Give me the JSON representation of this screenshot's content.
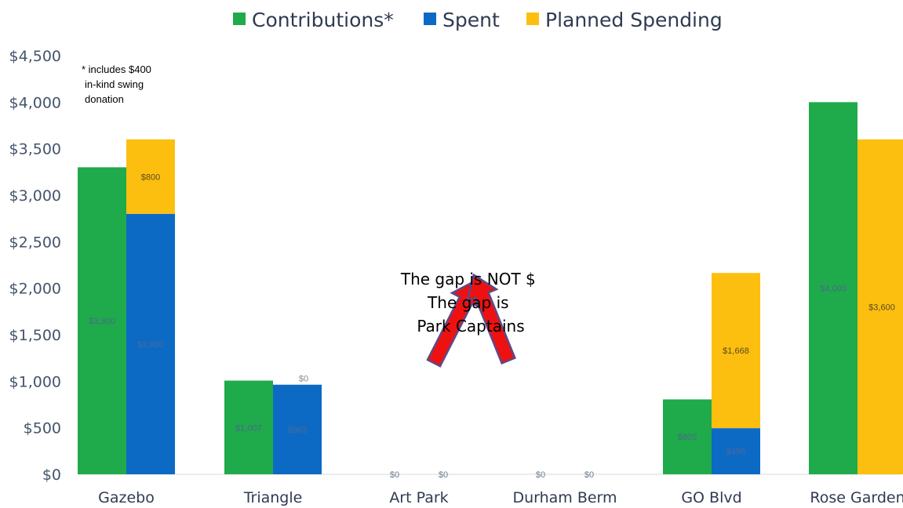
{
  "colors": {
    "contributions": "#1faa4b",
    "spent": "#0c6ac5",
    "planned": "#fdbf0f",
    "arrow": "#ee1111",
    "arrow_outline": "#5b4a8a",
    "tick_text": "#44546a"
  },
  "note": {
    "lines": [
      "* includes $400",
      "in-kind swing",
      "donation"
    ]
  },
  "callout": {
    "lines": [
      "The gap is NOT $",
      "The gap is",
      "Park Captains"
    ]
  },
  "chart_data": {
    "type": "bar",
    "stacked_series": [
      "Spent",
      "Planned Spending"
    ],
    "categories": [
      "Gazebo",
      "Triangle",
      "Art Park",
      "Durham Berm",
      "GO Blvd",
      "Rose Garden"
    ],
    "series": [
      {
        "name": "Contributions*",
        "color": "#1faa4b",
        "values": [
          3300,
          1007,
          0,
          0,
          805,
          4000
        ]
      },
      {
        "name": "Spent",
        "color": "#0c6ac5",
        "values": [
          2800,
          963,
          0,
          0,
          496,
          0
        ]
      },
      {
        "name": "Planned Spending",
        "color": "#fdbf0f",
        "values": [
          800,
          0,
          0,
          0,
          1668,
          3600
        ]
      }
    ],
    "data_labels": {
      "contributions": [
        "$3,300",
        "$1,007",
        "$0",
        "$0",
        "$805",
        "$4,000"
      ],
      "spent": [
        "$2,800",
        "$963",
        "$0",
        "$0",
        "$496",
        ""
      ],
      "planned": [
        "$800",
        "$0",
        "",
        "",
        "$1,668",
        "$3,600"
      ]
    },
    "y_ticks": [
      "$0",
      "$500",
      "$1,000",
      "$1,500",
      "$2,000",
      "$2,500",
      "$3,000",
      "$3,500",
      "$4,000",
      "$4,500"
    ],
    "ylim": [
      0,
      4500
    ],
    "legend": "top-center",
    "grid": false,
    "title": "",
    "xlabel": "",
    "ylabel": ""
  }
}
